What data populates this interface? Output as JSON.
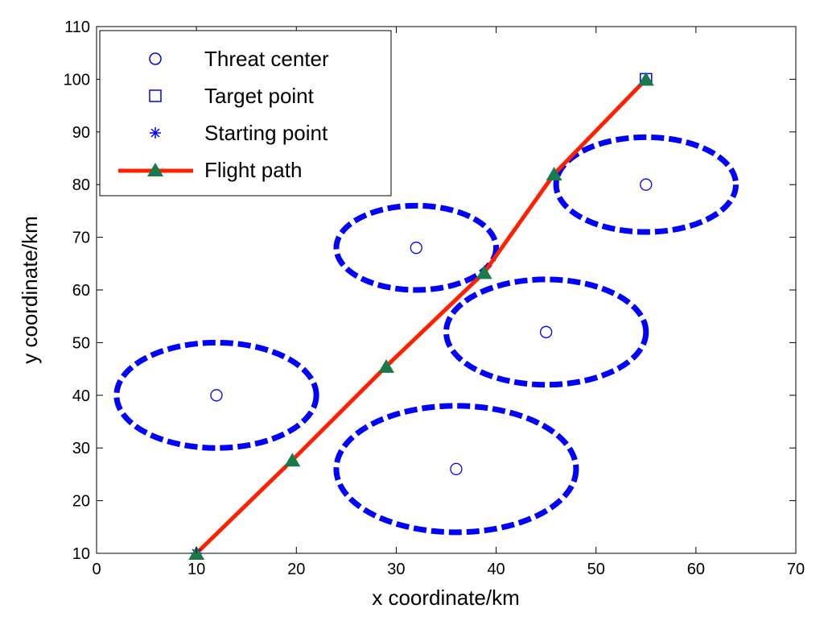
{
  "chart_data": {
    "type": "scatter",
    "xlabel": "x coordinate/km",
    "ylabel": "y coordinate/km",
    "xlim": [
      0,
      70
    ],
    "ylim": [
      10,
      110
    ],
    "xticks": [
      0,
      10,
      20,
      30,
      40,
      50,
      60,
      70
    ],
    "yticks": [
      10,
      20,
      30,
      40,
      50,
      60,
      70,
      80,
      90,
      100,
      110
    ],
    "grid": false,
    "legend": {
      "position": "top-left",
      "entries": [
        {
          "label": "Threat center",
          "marker": "circle",
          "color": "#0000ff"
        },
        {
          "label": "Target point",
          "marker": "square",
          "color": "#0000ff"
        },
        {
          "label": "Starting point",
          "marker": "asterisk",
          "color": "#0000ff"
        },
        {
          "label": "Flight path",
          "marker": "triangle",
          "color": "#ff2000",
          "marker_color": "#1a7a4a"
        }
      ]
    },
    "threats": [
      {
        "center": [
          12,
          40
        ],
        "radius_x": 10,
        "radius_y": 10
      },
      {
        "center": [
          32,
          68
        ],
        "radius_x": 8,
        "radius_y": 8
      },
      {
        "center": [
          36,
          26
        ],
        "radius_x": 12,
        "radius_y": 12
      },
      {
        "center": [
          45,
          52
        ],
        "radius_x": 10,
        "radius_y": 10
      },
      {
        "center": [
          55,
          80
        ],
        "radius_x": 9,
        "radius_y": 9
      }
    ],
    "target_point": [
      55,
      100
    ],
    "starting_point": [
      10,
      10
    ],
    "flight_path": {
      "x": [
        10,
        19.6,
        29,
        38.8,
        45.8,
        55
      ],
      "y": [
        10,
        27.7,
        45.5,
        63.3,
        82,
        100
      ]
    },
    "colors": {
      "threat": "#0000ff",
      "path": "#ff2000",
      "path_marker": "#1a7a4a"
    }
  }
}
